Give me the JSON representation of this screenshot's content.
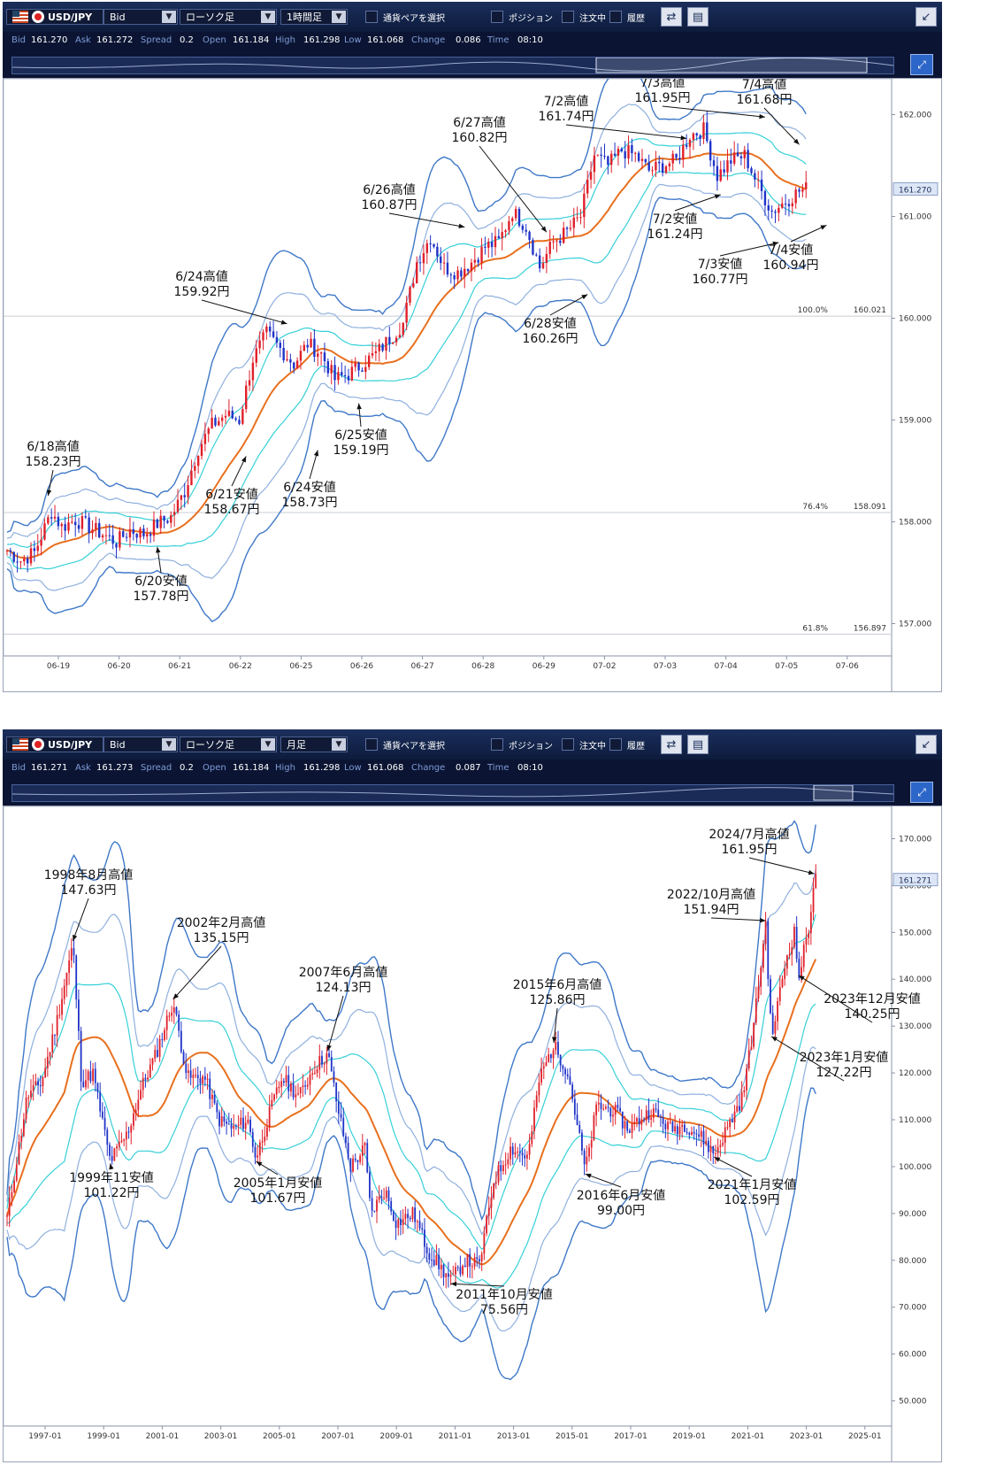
{
  "top": {
    "toolbar": {
      "pair": "USD/JPY",
      "price_type": "Bid",
      "chart_type": "ローソク足",
      "timeframe": "1時間足",
      "select_pair_label": "通貨ペアを選択",
      "position_label": "ポジション",
      "orders_label": "注文中",
      "history_label": "履歴"
    },
    "quote": {
      "bid_label": "Bid",
      "bid": "161.270",
      "ask_label": "Ask",
      "ask": "161.272",
      "spread_label": "Spread",
      "spread": "0.2",
      "open_label": "Open",
      "open": "161.184",
      "high_label": "High",
      "high": "161.298",
      "low_label": "Low",
      "low": "161.068",
      "change_label": "Change",
      "change": "0.086",
      "time_label": "Time",
      "time": "08:10"
    }
  },
  "bottom": {
    "toolbar": {
      "pair": "USD/JPY",
      "price_type": "Bid",
      "chart_type": "ローソク足",
      "timeframe": "月足",
      "select_pair_label": "通貨ペアを選択",
      "position_label": "ポジション",
      "orders_label": "注文中",
      "history_label": "履歴"
    },
    "quote": {
      "bid_label": "Bid",
      "bid": "161.271",
      "ask_label": "Ask",
      "ask": "161.273",
      "spread_label": "Spread",
      "spread": "0.2",
      "open_label": "Open",
      "open": "161.184",
      "high_label": "High",
      "high": "161.298",
      "low_label": "Low",
      "low": "161.068",
      "change_label": "Change",
      "change": "0.087",
      "time_label": "Time",
      "time": "08:10"
    }
  },
  "colors": {
    "toolbar_bg": "#0d1b3c",
    "candle_up": "#e0202a",
    "candle_down": "#1f33c8",
    "ma": "#e8701e",
    "band_outer": "#3f78c8",
    "band_mid": "#8fb0de",
    "band_inner": "#37d0d8",
    "annotation_text": "#111111"
  },
  "chart_data": [
    {
      "type": "candlestick",
      "timeframe": "1時間足",
      "x_tick_labels": [
        "06-19",
        "06-20",
        "06-21",
        "06-22",
        "06-25",
        "06-26",
        "06-27",
        "06-28",
        "06-29",
        "07-02",
        "07-03",
        "07-04",
        "07-05",
        "07-06"
      ],
      "y_tick_labels": [
        "157.000",
        "158.000",
        "159.000",
        "160.000",
        "161.000",
        "162.000"
      ],
      "ylim": [
        156.7,
        162.3
      ],
      "current_price": 161.27,
      "current_price_label": "161.270",
      "fib_levels": [
        {
          "label": "100.0%",
          "value_text": "160.021",
          "value": 160.021
        },
        {
          "label": "76.4%",
          "value_text": "158.091",
          "value": 158.091
        },
        {
          "label": "61.8%",
          "value_text": "156.897",
          "value": 156.897
        }
      ],
      "price_path": [
        {
          "i": 0,
          "p": 157.72
        },
        {
          "i": 4,
          "p": 157.62
        },
        {
          "i": 8,
          "p": 157.7
        },
        {
          "i": 13,
          "p": 158.1
        },
        {
          "i": 16,
          "p": 157.95
        },
        {
          "i": 20,
          "p": 158.02
        },
        {
          "i": 24,
          "p": 157.95
        },
        {
          "i": 28,
          "p": 157.88
        },
        {
          "i": 32,
          "p": 157.8
        },
        {
          "i": 36,
          "p": 157.92
        },
        {
          "i": 40,
          "p": 157.88
        },
        {
          "i": 44,
          "p": 157.98
        },
        {
          "i": 48,
          "p": 158.05
        },
        {
          "i": 52,
          "p": 158.3
        },
        {
          "i": 56,
          "p": 158.72
        },
        {
          "i": 60,
          "p": 158.95
        },
        {
          "i": 64,
          "p": 159.05
        },
        {
          "i": 68,
          "p": 159.0
        },
        {
          "i": 72,
          "p": 159.6
        },
        {
          "i": 76,
          "p": 159.85
        },
        {
          "i": 80,
          "p": 159.7
        },
        {
          "i": 84,
          "p": 159.55
        },
        {
          "i": 88,
          "p": 159.75
        },
        {
          "i": 92,
          "p": 159.65
        },
        {
          "i": 96,
          "p": 159.4
        },
        {
          "i": 100,
          "p": 159.45
        },
        {
          "i": 104,
          "p": 159.55
        },
        {
          "i": 108,
          "p": 159.65
        },
        {
          "i": 112,
          "p": 159.8
        },
        {
          "i": 116,
          "p": 159.95
        },
        {
          "i": 120,
          "p": 160.55
        },
        {
          "i": 124,
          "p": 160.8
        },
        {
          "i": 128,
          "p": 160.5
        },
        {
          "i": 132,
          "p": 160.45
        },
        {
          "i": 136,
          "p": 160.55
        },
        {
          "i": 140,
          "p": 160.7
        },
        {
          "i": 144,
          "p": 160.75
        },
        {
          "i": 148,
          "p": 161.05
        },
        {
          "i": 152,
          "p": 160.9
        },
        {
          "i": 156,
          "p": 160.5
        },
        {
          "i": 160,
          "p": 160.75
        },
        {
          "i": 164,
          "p": 160.85
        },
        {
          "i": 168,
          "p": 161.0
        },
        {
          "i": 172,
          "p": 161.6
        },
        {
          "i": 176,
          "p": 161.5
        },
        {
          "i": 180,
          "p": 161.65
        },
        {
          "i": 184,
          "p": 161.6
        },
        {
          "i": 188,
          "p": 161.45
        },
        {
          "i": 192,
          "p": 161.5
        },
        {
          "i": 196,
          "p": 161.55
        },
        {
          "i": 200,
          "p": 161.8
        },
        {
          "i": 204,
          "p": 161.85
        },
        {
          "i": 208,
          "p": 161.4
        },
        {
          "i": 212,
          "p": 161.55
        },
        {
          "i": 216,
          "p": 161.6
        },
        {
          "i": 220,
          "p": 161.3
        },
        {
          "i": 224,
          "p": 161.05
        },
        {
          "i": 228,
          "p": 161.15
        },
        {
          "i": 232,
          "p": 161.25
        },
        {
          "i": 234,
          "p": 161.27
        }
      ],
      "annotations": [
        {
          "date": "6/18高値",
          "price": "158.23円",
          "value": 158.23,
          "bar": 12
        },
        {
          "date": "6/20安値",
          "price": "157.78円",
          "value": 157.78,
          "bar": 44
        },
        {
          "date": "6/21安値",
          "price": "158.67円",
          "value": 158.67,
          "bar": 70
        },
        {
          "date": "6/24高値",
          "price": "159.92円",
          "value": 159.92,
          "bar": 82
        },
        {
          "date": "6/24安値",
          "price": "158.73円",
          "value": 158.73,
          "bar": 91
        },
        {
          "date": "6/25安値",
          "price": "159.19円",
          "value": 159.19,
          "bar": 103
        },
        {
          "date": "6/26高値",
          "price": "160.87円",
          "value": 160.87,
          "bar": 134
        },
        {
          "date": "6/27高値",
          "price": "160.82円",
          "value": 160.82,
          "bar": 158
        },
        {
          "date": "6/28安値",
          "price": "160.26円",
          "value": 160.26,
          "bar": 170
        },
        {
          "date": "7/2高値",
          "price": "161.74円",
          "value": 161.74,
          "bar": 199
        },
        {
          "date": "7/2安値",
          "price": "161.24円",
          "value": 161.24,
          "bar": 209
        },
        {
          "date": "7/3高値",
          "price": "161.95円",
          "value": 161.95,
          "bar": 222
        },
        {
          "date": "7/3安値",
          "price": "160.77円",
          "value": 160.77,
          "bar": 226
        },
        {
          "date": "7/4高値",
          "price": "161.68円",
          "value": 161.68,
          "bar": 232
        },
        {
          "date": "7/4安値",
          "price": "160.94円",
          "value": 160.94,
          "bar": 240
        }
      ]
    },
    {
      "type": "candlestick",
      "timeframe": "月足",
      "x_tick_labels": [
        "1997-01",
        "1999-01",
        "2001-01",
        "2003-01",
        "2005-01",
        "2007-01",
        "2009-01",
        "2011-01",
        "2013-01",
        "2015-01",
        "2017-01",
        "2019-01",
        "2021-01",
        "2023-01",
        "2025-01"
      ],
      "y_tick_labels": [
        "50.000",
        "60.000",
        "70.000",
        "80.000",
        "90.000",
        "100.000",
        "110.000",
        "120.000",
        "130.000",
        "140.000",
        "150.000",
        "160.000",
        "170.000"
      ],
      "ylim": [
        45,
        175
      ],
      "current_price": 161.271,
      "current_price_label": "161.271",
      "price_path": [
        {
          "t": 1996.3,
          "p": 89
        },
        {
          "t": 1997.0,
          "p": 115
        },
        {
          "t": 1997.5,
          "p": 118
        },
        {
          "t": 1998.0,
          "p": 130
        },
        {
          "t": 1998.6,
          "p": 147.6
        },
        {
          "t": 1998.9,
          "p": 118
        },
        {
          "t": 1999.3,
          "p": 120
        },
        {
          "t": 1999.9,
          "p": 101.2
        },
        {
          "t": 2000.5,
          "p": 107
        },
        {
          "t": 2001.0,
          "p": 117
        },
        {
          "t": 2001.5,
          "p": 124
        },
        {
          "t": 2002.1,
          "p": 135.2
        },
        {
          "t": 2002.6,
          "p": 119
        },
        {
          "t": 2003.2,
          "p": 119
        },
        {
          "t": 2003.7,
          "p": 110
        },
        {
          "t": 2004.2,
          "p": 108
        },
        {
          "t": 2004.7,
          "p": 110
        },
        {
          "t": 2005.0,
          "p": 101.7
        },
        {
          "t": 2005.5,
          "p": 112
        },
        {
          "t": 2005.9,
          "p": 119
        },
        {
          "t": 2006.5,
          "p": 115
        },
        {
          "t": 2007.0,
          "p": 121
        },
        {
          "t": 2007.5,
          "p": 124.1
        },
        {
          "t": 2007.9,
          "p": 111
        },
        {
          "t": 2008.3,
          "p": 100
        },
        {
          "t": 2008.8,
          "p": 104
        },
        {
          "t": 2009.0,
          "p": 90
        },
        {
          "t": 2009.5,
          "p": 95
        },
        {
          "t": 2009.9,
          "p": 88
        },
        {
          "t": 2010.5,
          "p": 90
        },
        {
          "t": 2011.0,
          "p": 82
        },
        {
          "t": 2011.8,
          "p": 75.6
        },
        {
          "t": 2012.3,
          "p": 80
        },
        {
          "t": 2012.8,
          "p": 79
        },
        {
          "t": 2013.3,
          "p": 97
        },
        {
          "t": 2013.9,
          "p": 104
        },
        {
          "t": 2014.5,
          "p": 102
        },
        {
          "t": 2014.9,
          "p": 119
        },
        {
          "t": 2015.4,
          "p": 125.9
        },
        {
          "t": 2015.9,
          "p": 120
        },
        {
          "t": 2016.5,
          "p": 99
        },
        {
          "t": 2016.9,
          "p": 113
        },
        {
          "t": 2017.5,
          "p": 112
        },
        {
          "t": 2018.0,
          "p": 108
        },
        {
          "t": 2018.8,
          "p": 112
        },
        {
          "t": 2019.5,
          "p": 108
        },
        {
          "t": 2020.0,
          "p": 109
        },
        {
          "t": 2020.6,
          "p": 106
        },
        {
          "t": 2021.0,
          "p": 102.6
        },
        {
          "t": 2021.6,
          "p": 110
        },
        {
          "t": 2022.0,
          "p": 115
        },
        {
          "t": 2022.4,
          "p": 131
        },
        {
          "t": 2022.8,
          "p": 151.9
        },
        {
          "t": 2023.0,
          "p": 127.2
        },
        {
          "t": 2023.5,
          "p": 144
        },
        {
          "t": 2023.8,
          "p": 150
        },
        {
          "t": 2023.95,
          "p": 140.3
        },
        {
          "t": 2024.3,
          "p": 151
        },
        {
          "t": 2024.5,
          "p": 161.95
        },
        {
          "t": 2024.55,
          "p": 161.27
        }
      ],
      "annotations": [
        {
          "date": "1998年8月高値",
          "price": "147.63円",
          "value": 147.63,
          "t": 1998.6
        },
        {
          "date": "1999年11安値",
          "price": "101.22円",
          "value": 101.22,
          "t": 1999.9
        },
        {
          "date": "2002年2月高値",
          "price": "135.15円",
          "value": 135.15,
          "t": 2002.1
        },
        {
          "date": "2005年1月安値",
          "price": "101.67円",
          "value": 101.67,
          "t": 2005.0
        },
        {
          "date": "2007年6月高値",
          "price": "124.13円",
          "value": 124.13,
          "t": 2007.5
        },
        {
          "date": "2011年10月安値",
          "price": "75.56円",
          "value": 75.56,
          "t": 2011.8
        },
        {
          "date": "2015年6月高値",
          "price": "125.86円",
          "value": 125.86,
          "t": 2015.4
        },
        {
          "date": "2016年6月安値",
          "price": "99.00円",
          "value": 99.0,
          "t": 2016.5
        },
        {
          "date": "2021年1月安値",
          "price": "102.59円",
          "value": 102.59,
          "t": 2021.0
        },
        {
          "date": "2022/10月高値",
          "price": "151.94円",
          "value": 151.94,
          "t": 2022.8
        },
        {
          "date": "2023年1月安値",
          "price": "127.22円",
          "value": 127.22,
          "t": 2023.0
        },
        {
          "date": "2023年12月安値",
          "price": "140.25円",
          "value": 140.25,
          "t": 2023.95
        },
        {
          "date": "2024/7月高値",
          "price": "161.95円",
          "value": 161.95,
          "t": 2024.5
        }
      ]
    }
  ]
}
